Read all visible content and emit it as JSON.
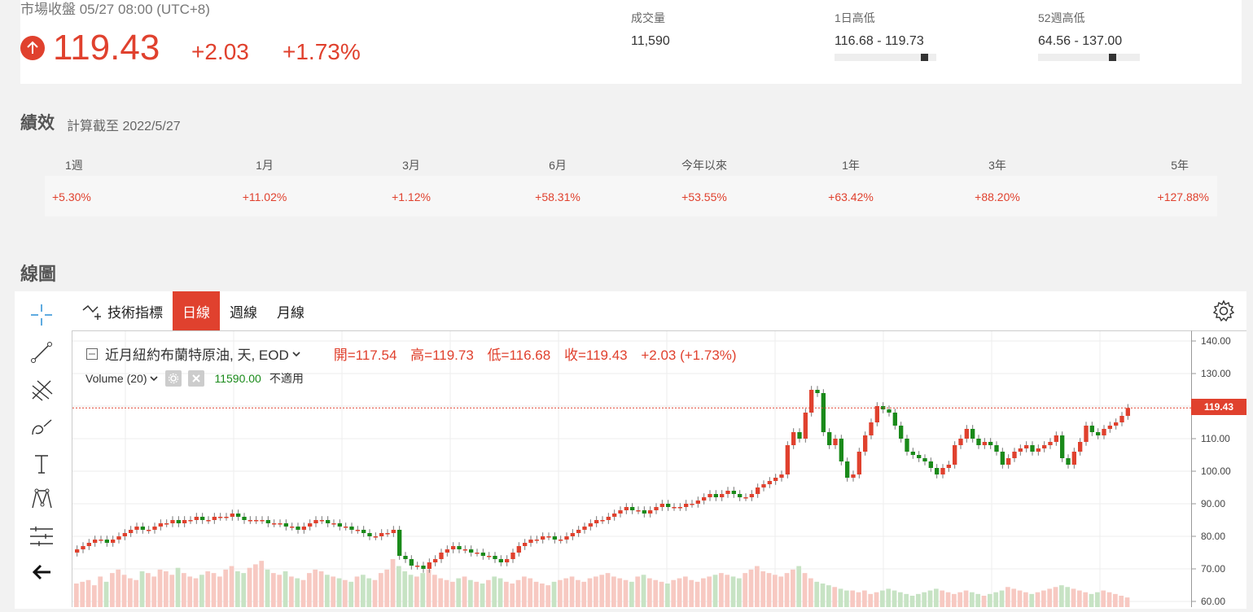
{
  "quote": {
    "market_status": "市場收盤 05/27 08:00 (UTC+8)",
    "price": "119.43",
    "change": "+2.03",
    "change_pct": "+1.73%",
    "direction_icon": "arrow-up-icon",
    "up_color": "#e0412e",
    "stats": [
      {
        "label": "成交量",
        "value": "11,590"
      },
      {
        "label": "1日高低",
        "value": "116.68 - 119.73",
        "range_position": 0.91
      },
      {
        "label": "52週高低",
        "value": "64.56 - 137.00",
        "range_position": 0.75
      }
    ]
  },
  "performance": {
    "title": "績效",
    "subtitle": "計算截至 2022/5/27",
    "periods": [
      "1週",
      "1月",
      "3月",
      "6月",
      "今年以來",
      "1年",
      "3年",
      "5年"
    ],
    "values": [
      "+5.30%",
      "+11.02%",
      "+1.12%",
      "+58.31%",
      "+53.55%",
      "+63.42%",
      "+88.20%",
      "+127.88%"
    ]
  },
  "chart": {
    "title": "線圖",
    "toolbar": {
      "indicators": "技術指標",
      "daily": "日線",
      "weekly": "週線",
      "monthly": "月線",
      "active": "daily"
    },
    "left_tools": [
      "crosshair-icon",
      "trend-line-icon",
      "fib-icon",
      "brush-icon",
      "text-icon",
      "pattern-icon",
      "measure-icon",
      "back-arrow-icon"
    ],
    "legend": {
      "symbol": "近月紐約布蘭特原油, 天, EOD",
      "open": "開=117.54",
      "high": "高=119.73",
      "low": "低=116.68",
      "close": "收=119.43",
      "change": "+2.03 (+1.73%)",
      "volume_label": "Volume (20)",
      "volume_value": "11590.00",
      "volume_na": "不適用"
    },
    "last_price_label": "119.43",
    "up_candle_color": "#e0412e",
    "down_candle_color": "#1a8a1a"
  },
  "chart_data": {
    "type": "candlestick",
    "title": "近月紐約布蘭特原油, 天, EOD",
    "ylim": [
      58,
      143
    ],
    "y_ticks": [
      "140.00",
      "130.00",
      "120.00",
      "110.00",
      "100.00",
      "90.00",
      "80.00",
      "70.00",
      "60.00"
    ],
    "y_tick_values": [
      140,
      130,
      120,
      110,
      100,
      90,
      80,
      70,
      60
    ],
    "last_price": 119.43,
    "close_series": [
      76,
      77,
      78,
      79,
      79,
      78,
      79,
      80,
      81,
      82,
      83,
      82,
      82,
      83,
      84,
      84,
      85,
      84,
      85,
      85,
      86,
      85,
      85,
      86,
      86,
      86,
      87,
      86,
      85,
      85,
      85,
      85,
      84,
      84,
      84,
      83,
      83,
      82,
      83,
      84,
      85,
      85,
      84,
      84,
      83,
      83,
      82,
      82,
      81,
      80,
      80,
      81,
      81,
      82,
      74,
      73,
      71,
      71,
      70,
      72,
      73,
      75,
      76,
      77,
      76,
      76,
      75,
      75,
      74,
      74,
      73,
      72,
      73,
      75,
      77,
      78,
      79,
      79,
      80,
      80,
      79,
      79,
      80,
      81,
      82,
      83,
      84,
      85,
      85,
      86,
      87,
      88,
      89,
      88,
      88,
      87,
      88,
      89,
      90,
      89,
      89,
      89,
      90,
      90,
      91,
      92,
      93,
      92,
      93,
      94,
      93,
      92,
      92,
      93,
      95,
      96,
      97,
      98,
      99,
      108,
      112,
      110,
      118,
      125,
      124,
      112,
      108,
      110,
      103,
      98,
      99,
      106,
      111,
      115,
      120,
      119,
      118,
      114,
      110,
      106,
      105,
      104,
      103,
      101,
      99,
      101,
      102,
      108,
      110,
      113,
      110,
      108,
      109,
      108,
      106,
      102,
      104,
      106,
      107,
      108,
      106,
      107,
      108,
      109,
      111,
      104,
      102,
      106,
      109,
      114,
      112,
      111,
      113,
      114,
      115,
      117,
      119.43
    ],
    "volume_series": [
      14,
      15,
      16,
      13,
      18,
      15,
      20,
      22,
      19,
      17,
      16,
      21,
      20,
      18,
      22,
      21,
      19,
      23,
      20,
      18,
      17,
      19,
      21,
      20,
      18,
      22,
      24,
      21,
      20,
      23,
      25,
      27,
      22,
      20,
      19,
      21,
      18,
      17,
      16,
      20,
      22,
      21,
      19,
      18,
      17,
      16,
      15,
      18,
      19,
      17,
      16,
      20,
      22,
      28,
      24,
      21,
      19,
      18,
      20,
      22,
      19,
      17,
      16,
      15,
      17,
      18,
      16,
      15,
      14,
      16,
      18,
      17,
      15,
      14,
      16,
      18,
      17,
      15,
      14,
      13,
      15,
      16,
      17,
      18,
      16,
      15,
      17,
      18,
      19,
      20,
      18,
      17,
      16,
      15,
      18,
      19,
      17,
      16,
      15,
      14,
      16,
      17,
      18,
      16,
      15,
      17,
      18,
      19,
      20,
      19,
      18,
      17,
      20,
      22,
      24,
      21,
      20,
      19,
      18,
      20,
      22,
      24,
      20,
      17,
      15,
      14,
      13,
      12,
      11,
      10,
      10,
      9,
      10,
      8,
      9,
      10,
      11,
      10,
      9,
      8,
      7,
      8,
      9,
      10,
      11,
      10,
      9,
      8,
      9,
      10,
      9,
      8,
      7,
      8,
      9,
      10,
      12,
      11,
      10,
      9,
      8,
      9,
      10,
      11,
      12,
      13,
      12,
      11,
      10,
      9,
      8,
      9,
      10,
      9,
      8,
      7,
      6
    ]
  }
}
